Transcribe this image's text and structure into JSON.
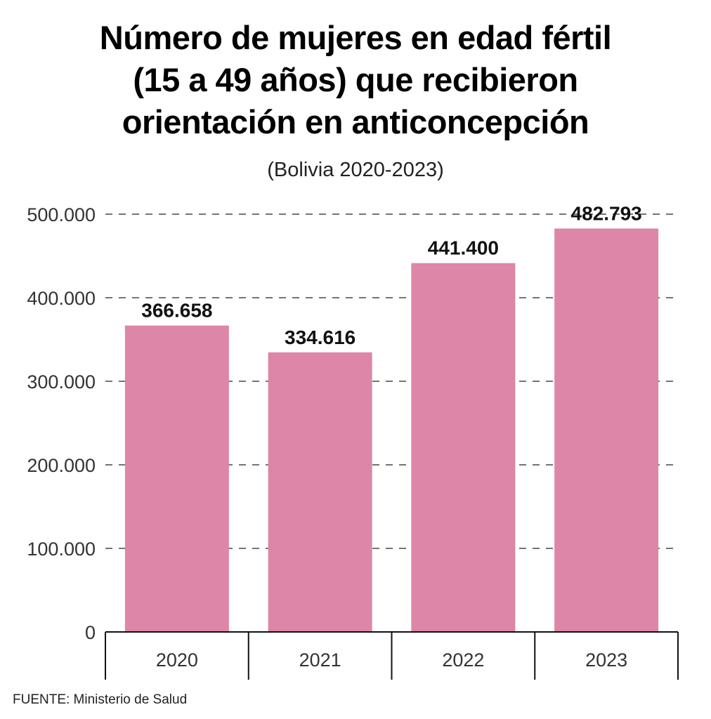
{
  "title_lines": [
    "Número de mujeres en edad fértil",
    "(15 a 49 años) que recibieron",
    "orientación en anticoncepción"
  ],
  "subtitle": "(Bolivia 2020-2023)",
  "source": "FUENTE: Ministerio de Salud",
  "chart_data": {
    "type": "bar",
    "title": "Número de mujeres en edad fértil (15 a 49 años) que recibieron orientación en anticoncepción",
    "subtitle": "(Bolivia 2020-2023)",
    "categories": [
      "2020",
      "2021",
      "2022",
      "2023"
    ],
    "values": [
      366658,
      334616,
      441400,
      482793
    ],
    "value_labels": [
      "366.658",
      "334.616",
      "441.400",
      "482.793"
    ],
    "yticks": [
      0,
      100000,
      200000,
      300000,
      400000,
      500000
    ],
    "ytick_labels": [
      "0",
      "100.000",
      "200.000",
      "300.000",
      "400.000",
      "500.000"
    ],
    "ylim": [
      0,
      500000
    ],
    "xlabel": "",
    "ylabel": "",
    "grid": "dashed-horizontal",
    "legend": "none",
    "bar_color": "#dd86a7"
  }
}
